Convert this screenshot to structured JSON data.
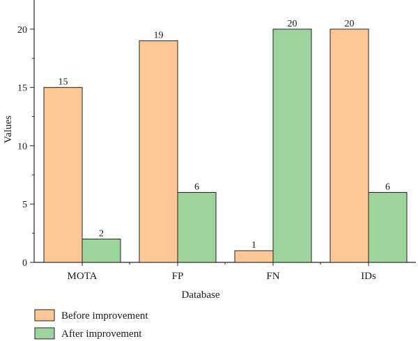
{
  "chart_data": {
    "type": "bar",
    "categories": [
      "MOTA",
      "FP",
      "FN",
      "IDs"
    ],
    "series": [
      {
        "name": "Before improvement",
        "values": [
          15,
          19,
          1,
          20
        ],
        "color": "#FDC896"
      },
      {
        "name": "After improvement",
        "values": [
          2,
          6,
          20,
          6
        ],
        "color": "#9DD49B"
      }
    ],
    "xlabel": "Database",
    "ylabel": "Values",
    "ylim": [
      0,
      22.5
    ],
    "yticks": [
      0,
      5,
      10,
      15,
      20
    ],
    "data_labels": true,
    "grid": false,
    "legend_position": "bottom-left"
  }
}
